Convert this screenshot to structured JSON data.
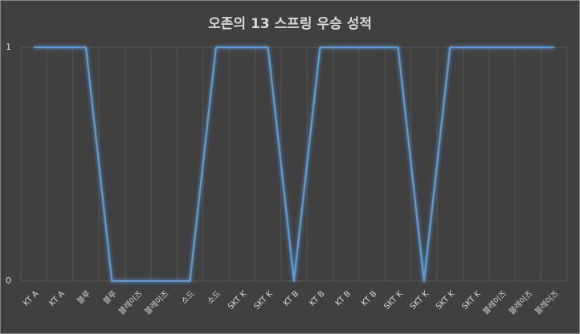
{
  "chart_data": {
    "type": "line",
    "title": "오존의 13 스프링 우승 성적",
    "categories": [
      "KT A",
      "KT A",
      "블루",
      "블루",
      "블레이즈",
      "블레이즈",
      "소드",
      "소드",
      "SKT K",
      "SKT K",
      "KT B",
      "KT B",
      "KT B",
      "KT B",
      "SKT K",
      "SKT K",
      "SKT K",
      "SKT K",
      "블레이즈",
      "블레이즈",
      "블레이즈"
    ],
    "values": [
      1,
      1,
      1,
      0,
      0,
      0,
      0,
      1,
      1,
      1,
      0,
      1,
      1,
      1,
      1,
      0,
      1,
      1,
      1,
      1,
      1
    ],
    "color": "#5b9bd5",
    "ylim": [
      0,
      1
    ],
    "yticks": [
      0,
      1
    ],
    "grid": true
  }
}
